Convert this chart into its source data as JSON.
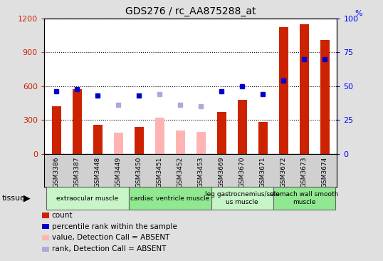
{
  "title": "GDS276 / rc_AA875288_at",
  "samples": [
    "GSM3386",
    "GSM3387",
    "GSM3448",
    "GSM3449",
    "GSM3450",
    "GSM3451",
    "GSM3452",
    "GSM3453",
    "GSM3669",
    "GSM3670",
    "GSM3671",
    "GSM3672",
    "GSM3673",
    "GSM3674"
  ],
  "count_values": [
    420,
    575,
    255,
    null,
    240,
    null,
    null,
    null,
    370,
    480,
    285,
    1120,
    1150,
    1010
  ],
  "count_absent": [
    null,
    null,
    null,
    190,
    null,
    320,
    210,
    195,
    null,
    null,
    null,
    null,
    null,
    null
  ],
  "percentile_present": [
    46,
    48,
    43,
    null,
    43,
    null,
    null,
    null,
    46,
    50,
    44,
    54,
    70,
    70
  ],
  "percentile_absent": [
    null,
    null,
    null,
    36,
    null,
    44,
    36,
    35,
    null,
    null,
    null,
    null,
    null,
    null
  ],
  "tissues": [
    {
      "label": "extraocular muscle",
      "start": 0,
      "end": 3,
      "color": "#c8f5c8"
    },
    {
      "label": "cardiac ventricle muscle",
      "start": 4,
      "end": 7,
      "color": "#90e890"
    },
    {
      "label": "leg gastrocnemius/sole\nus muscle",
      "start": 8,
      "end": 10,
      "color": "#c8f5c8"
    },
    {
      "label": "stomach wall smooth\nmuscle",
      "start": 11,
      "end": 13,
      "color": "#90e890"
    }
  ],
  "bar_width": 0.45,
  "ylim_left": [
    0,
    1200
  ],
  "ylim_right": [
    0,
    100
  ],
  "yticks_left": [
    0,
    300,
    600,
    900,
    1200
  ],
  "yticks_right": [
    0,
    25,
    50,
    75,
    100
  ],
  "bar_color_present": "#cc2200",
  "bar_color_absent": "#ffb3b3",
  "dot_color_present": "#0000cc",
  "dot_color_absent": "#aaaadd",
  "background_color": "#e0e0e0",
  "plot_bg": "#ffffff",
  "xtick_bg": "#d0d0d0",
  "legend_items": [
    {
      "label": "count",
      "color": "#cc2200"
    },
    {
      "label": "percentile rank within the sample",
      "color": "#0000cc"
    },
    {
      "label": "value, Detection Call = ABSENT",
      "color": "#ffb3b3"
    },
    {
      "label": "rank, Detection Call = ABSENT",
      "color": "#aaaadd"
    }
  ]
}
